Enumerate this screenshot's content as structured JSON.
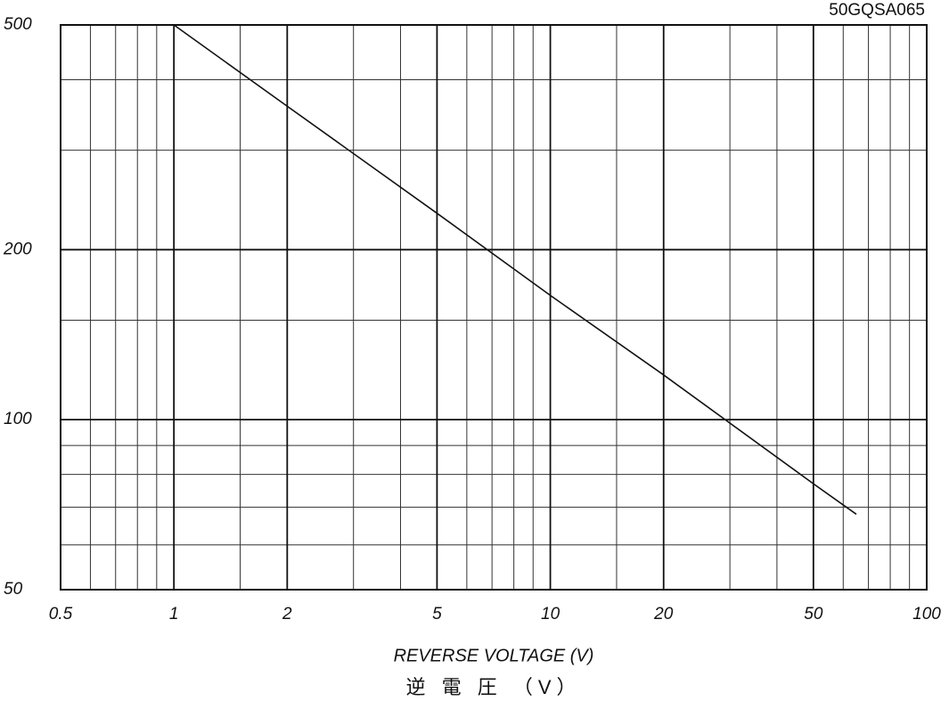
{
  "chart_data": {
    "type": "line",
    "title": "50GQSA065",
    "xlabel": "REVERSE VOLTAGE (V)",
    "xlabel2": "逆 電 圧 （V）",
    "xscale": "log",
    "yscale": "log",
    "grid": true,
    "xlim": [
      0.5,
      100
    ],
    "ylim": [
      50,
      500
    ],
    "xticks": [
      0.5,
      1,
      2,
      5,
      10,
      20,
      50,
      100
    ],
    "yticks": [
      50,
      100,
      200,
      500
    ],
    "xgrid": [
      0.6,
      0.7,
      0.8,
      0.9,
      1.5,
      3,
      4,
      6,
      7,
      8,
      9,
      15,
      30,
      40,
      60,
      70,
      80,
      90
    ],
    "ygrid": [
      60,
      70,
      80,
      90,
      150,
      300,
      400
    ],
    "series": [
      {
        "color": "#111111",
        "x": [
          1,
          2,
          5,
          10,
          20,
          50,
          65
        ],
        "values": [
          500,
          359,
          232,
          166,
          120,
          77,
          68
        ]
      }
    ]
  }
}
